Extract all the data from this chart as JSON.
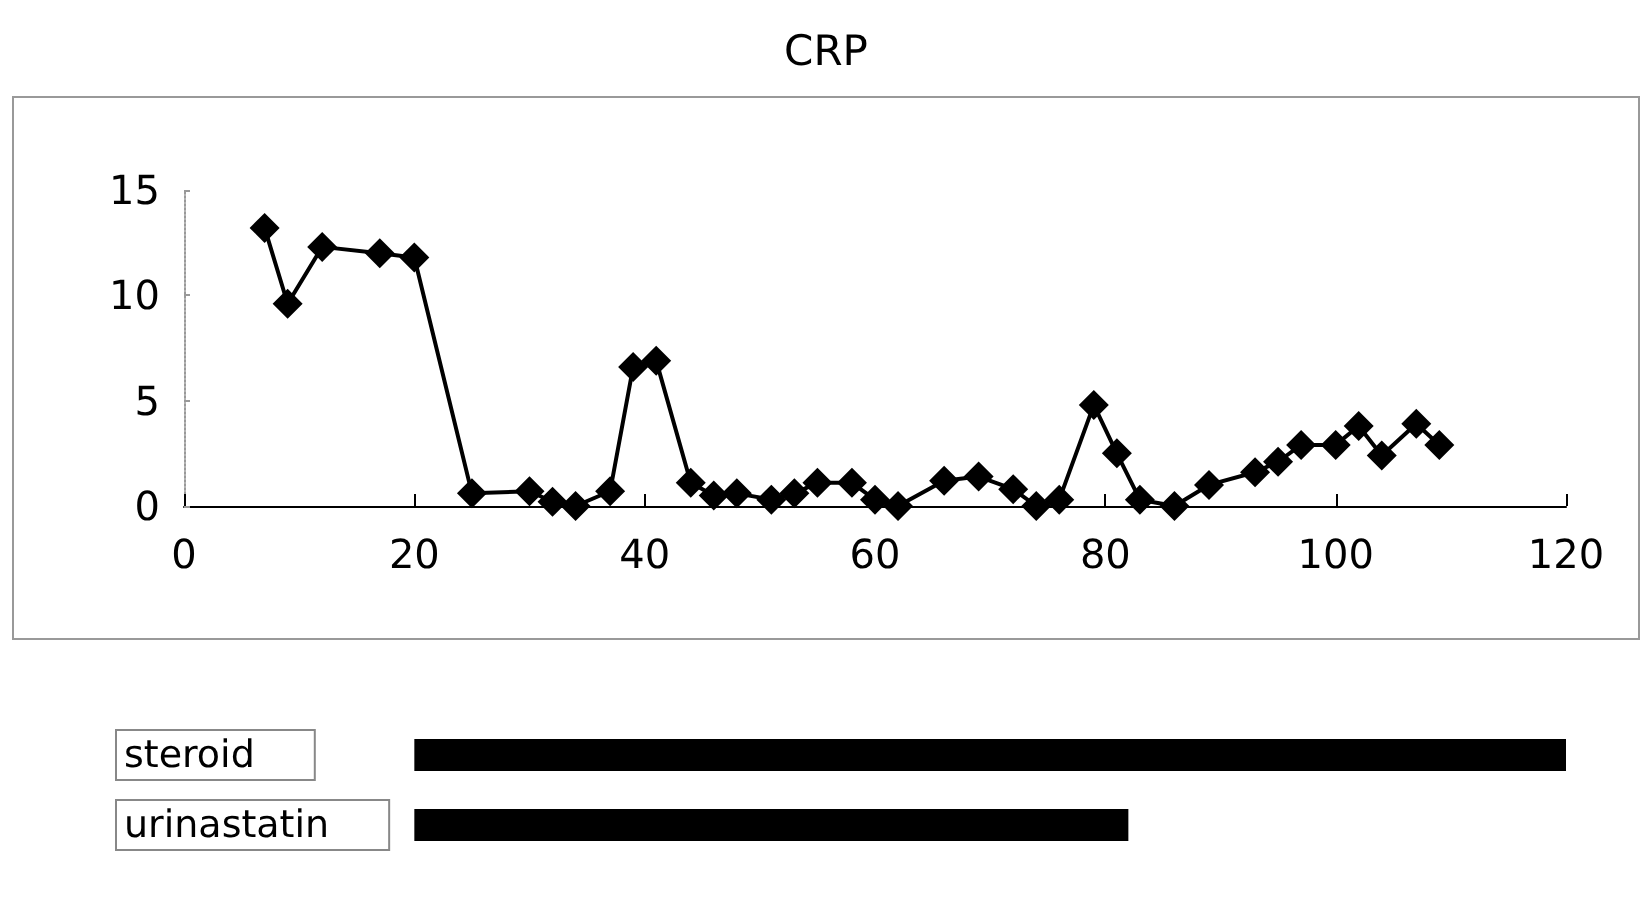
{
  "chart_data": [
    {
      "type": "line",
      "title": "CRP",
      "marker": "diamond",
      "line_style": "solid",
      "grid": false,
      "x": [
        7,
        9,
        12,
        17,
        20,
        25,
        30,
        32,
        34,
        37,
        39,
        41,
        44,
        46,
        48,
        51,
        53,
        55,
        58,
        60,
        62,
        66,
        69,
        72,
        74,
        76,
        79,
        81,
        83,
        86,
        89,
        93,
        95,
        97,
        100,
        102,
        104,
        107,
        109
      ],
      "series": [
        {
          "color": "#000000",
          "values": [
            13.2,
            9.6,
            12.3,
            12.0,
            11.8,
            0.6,
            0.7,
            0.2,
            0,
            0.7,
            6.6,
            6.9,
            1.1,
            0.5,
            0.6,
            0.3,
            0.6,
            1.1,
            1.1,
            0.3,
            0,
            1.2,
            1.4,
            0.8,
            0,
            0.3,
            4.8,
            2.5,
            0.3,
            0,
            1.0,
            1.6,
            2.1,
            2.9,
            2.9,
            3.8,
            2.4,
            3.9,
            2.9
          ]
        }
      ],
      "xlim": [
        0,
        120
      ],
      "xticks": [
        0,
        20,
        40,
        60,
        80,
        100,
        120
      ],
      "ylim": [
        0,
        15
      ],
      "yticks": [
        0,
        5,
        10,
        15
      ]
    },
    {
      "type": "bar",
      "orientation": "horizontal",
      "categories": [
        "steroid",
        "urinastatin"
      ],
      "values": [
        100,
        62
      ],
      "base": [
        20,
        20
      ],
      "color": "#000000",
      "xlim": [
        0,
        120
      ],
      "tick_labels": "y"
    }
  ]
}
